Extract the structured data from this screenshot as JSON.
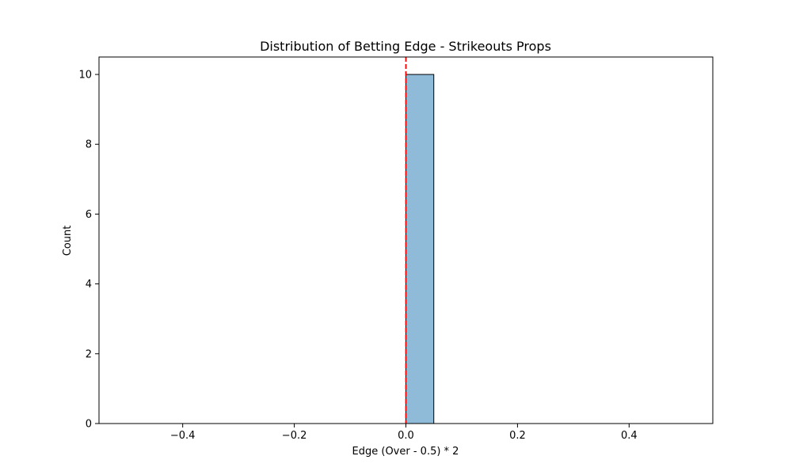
{
  "chart_data": {
    "type": "bar",
    "title": "Distribution of Betting Edge - Strikeouts Props",
    "xlabel": "Edge (Over - 0.5) * 2",
    "ylabel": "Count",
    "xlim": [
      -0.55,
      0.55
    ],
    "ylim": [
      0,
      10.5
    ],
    "x_ticks": [
      -0.4,
      -0.2,
      0.0,
      0.2,
      0.4
    ],
    "x_tick_labels": [
      "−0.4",
      "−0.2",
      "0.0",
      "0.2",
      "0.4"
    ],
    "y_ticks": [
      0,
      2,
      4,
      6,
      8,
      10
    ],
    "y_tick_labels": [
      "0",
      "2",
      "4",
      "6",
      "8",
      "10"
    ],
    "bin_edges": [
      -0.5,
      -0.45,
      -0.4,
      -0.35,
      -0.3,
      -0.25,
      -0.2,
      -0.15,
      -0.1,
      -0.05,
      0.0,
      0.05,
      0.1,
      0.15,
      0.2,
      0.25,
      0.3,
      0.35,
      0.4,
      0.45,
      0.5
    ],
    "counts": [
      0,
      0,
      0,
      0,
      0,
      0,
      0,
      0,
      0,
      0,
      10,
      0,
      0,
      0,
      0,
      0,
      0,
      0,
      0,
      0
    ],
    "reference_line": {
      "x": 0.0,
      "style": "dashed",
      "color": "#ff0000"
    },
    "bar_color": "#8fbbd9",
    "edge_color": "#000000",
    "grid": false
  }
}
